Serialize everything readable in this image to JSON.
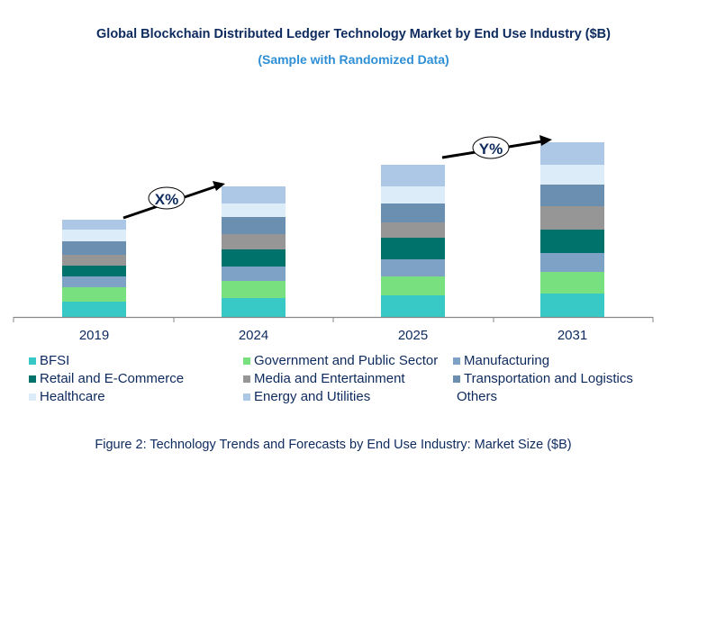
{
  "chart_data": {
    "type": "bar",
    "stacked": true,
    "title": "Global Blockchain Distributed Ledger Technology Market by End Use Industry ($B)",
    "subtitle": "(Sample with Randomized Data)",
    "categories": [
      "2019",
      "2024",
      "2025",
      "2031"
    ],
    "series": [
      {
        "name": "BFSI",
        "color": "#38c8c6",
        "values": [
          17,
          21,
          24,
          26
        ]
      },
      {
        "name": "Government and Public Sector",
        "color": "#78e07e",
        "values": [
          16,
          19,
          21,
          24
        ]
      },
      {
        "name": "Manufacturing",
        "color": "#7ea2c6",
        "values": [
          12,
          16,
          19,
          21
        ]
      },
      {
        "name": "Retail and E-Commerce",
        "color": "#00726c",
        "values": [
          12,
          19,
          24,
          26
        ]
      },
      {
        "name": "Media and Entertainment",
        "color": "#969696",
        "values": [
          12,
          17,
          17,
          26
        ]
      },
      {
        "name": "Transportation and Logistics",
        "color": "#6b8fb0",
        "values": [
          15,
          19,
          21,
          24
        ]
      },
      {
        "name": "Healthcare",
        "color": "#dcecf8",
        "values": [
          13,
          15,
          19,
          22
        ]
      },
      {
        "name": "Energy and Utilities",
        "color": "#adc8e6",
        "values": [
          11,
          19,
          24,
          25
        ]
      },
      {
        "name": "Others",
        "color": null,
        "values": [
          0,
          0,
          0,
          0
        ]
      }
    ],
    "annotations": [
      "X%",
      "Y%"
    ],
    "legend_position": "bottom",
    "grid": false
  },
  "caption": "Figure 2: Technology  Trends  and Forecasts by End Use Industry:  Market Size ($B)"
}
